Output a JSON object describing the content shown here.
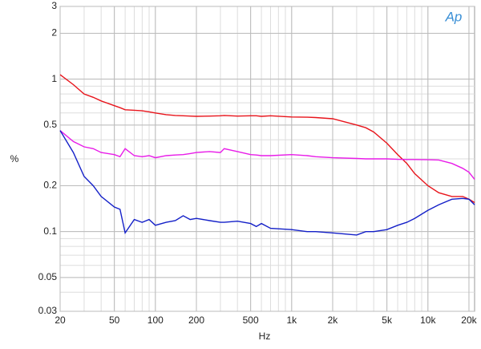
{
  "chart_data": {
    "type": "line",
    "logo": "Ap",
    "xlabel": "Hz",
    "ylabel": "%",
    "log_x": true,
    "log_y": true,
    "grid": true,
    "minor_grid": true,
    "xlim": [
      20,
      22000
    ],
    "ylim": [
      0.03,
      3
    ],
    "xticks": [
      20,
      50,
      100,
      200,
      500,
      {
        "value": 1000,
        "label": "1k"
      },
      {
        "value": 2000,
        "label": "2k"
      },
      {
        "value": 5000,
        "label": "5k"
      },
      {
        "value": 10000,
        "label": "10k"
      },
      {
        "value": 20000,
        "label": "20k"
      }
    ],
    "yticks": [
      0.03,
      0.05,
      0.1,
      0.2,
      0.5,
      1,
      2,
      3
    ],
    "x": [
      20,
      25,
      30,
      35,
      40,
      50,
      55,
      60,
      70,
      80,
      90,
      100,
      120,
      140,
      160,
      180,
      200,
      250,
      300,
      320,
      400,
      500,
      550,
      600,
      700,
      1000,
      1300,
      1500,
      2000,
      3000,
      3500,
      4000,
      5000,
      6000,
      7000,
      8000,
      10000,
      12000,
      15000,
      18000,
      20000,
      22000
    ],
    "series": [
      {
        "color": "#e8141b",
        "values": [
          1.07,
          0.92,
          0.8,
          0.76,
          0.72,
          0.67,
          0.65,
          0.63,
          0.625,
          0.62,
          0.61,
          0.6,
          0.585,
          0.578,
          0.575,
          0.572,
          0.57,
          0.572,
          0.575,
          0.578,
          0.572,
          0.575,
          0.575,
          0.57,
          0.575,
          0.565,
          0.563,
          0.56,
          0.55,
          0.5,
          0.48,
          0.45,
          0.38,
          0.32,
          0.28,
          0.24,
          0.2,
          0.18,
          0.17,
          0.17,
          0.163,
          0.155
        ]
      },
      {
        "color": "#e81ce8",
        "values": [
          0.46,
          0.39,
          0.36,
          0.35,
          0.33,
          0.32,
          0.31,
          0.35,
          0.315,
          0.31,
          0.315,
          0.305,
          0.315,
          0.318,
          0.32,
          0.325,
          0.33,
          0.335,
          0.33,
          0.35,
          0.335,
          0.32,
          0.318,
          0.315,
          0.315,
          0.32,
          0.315,
          0.31,
          0.305,
          0.302,
          0.3,
          0.3,
          0.3,
          0.298,
          0.297,
          0.297,
          0.296,
          0.295,
          0.28,
          0.26,
          0.245,
          0.22
        ]
      },
      {
        "color": "#1420c8",
        "values": [
          0.46,
          0.33,
          0.23,
          0.2,
          0.17,
          0.145,
          0.14,
          0.098,
          0.12,
          0.115,
          0.12,
          0.11,
          0.115,
          0.118,
          0.127,
          0.12,
          0.122,
          0.118,
          0.115,
          0.115,
          0.117,
          0.113,
          0.108,
          0.113,
          0.105,
          0.103,
          0.1,
          0.1,
          0.098,
          0.095,
          0.1,
          0.1,
          0.103,
          0.11,
          0.115,
          0.122,
          0.138,
          0.15,
          0.163,
          0.165,
          0.163,
          0.15
        ]
      }
    ]
  }
}
